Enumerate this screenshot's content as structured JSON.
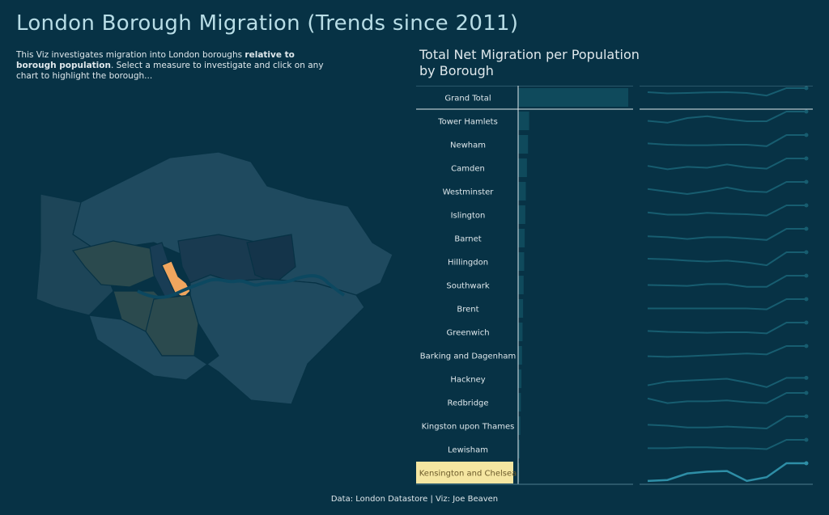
{
  "header": {
    "title": "London Borough Migration (Trends since 2011)",
    "intro_part1": "This Viz investigates migration into London boroughs ",
    "intro_bold": "relative to borough population",
    "intro_part2": ". Select a measure to investigate and click on any chart to highlight the borough..."
  },
  "footer": {
    "text": "Data: London Datastore | Viz: Joe Beaven"
  },
  "colors": {
    "background": "#073245",
    "bar": "#0f4a5c",
    "line": "#175d70",
    "highlight_line": "#2e8ea6",
    "highlight_label_bg": "#f5e6a1",
    "map_highlight": "#f0a55e"
  },
  "map": {
    "highlighted_borough": "Kensington and Chelsea",
    "icon": "london-borough-map"
  },
  "chart_data": {
    "type": "table",
    "title": "Total Net Migration per Population by Borough",
    "highlighted": "Kensington and Chelsea",
    "rows": [
      {
        "label": "Grand Total",
        "bar": 100,
        "trend": [
          0.78,
          0.72,
          0.74,
          0.77,
          0.78,
          0.74,
          0.6,
          1.0,
          1.0
        ]
      },
      {
        "label": "Tower Hamlets",
        "bar": 10,
        "trend": [
          0.5,
          0.4,
          0.65,
          0.75,
          0.6,
          0.48,
          0.48,
          1.0,
          1.0
        ]
      },
      {
        "label": "Newham",
        "bar": 9,
        "trend": [
          0.55,
          0.48,
          0.45,
          0.45,
          0.48,
          0.48,
          0.4,
          1.0,
          1.0
        ]
      },
      {
        "label": "Camden",
        "bar": 8,
        "trend": [
          0.6,
          0.42,
          0.55,
          0.5,
          0.68,
          0.52,
          0.45,
          1.0,
          1.0
        ]
      },
      {
        "label": "Westminster",
        "bar": 7,
        "trend": [
          0.62,
          0.48,
          0.35,
          0.5,
          0.7,
          0.5,
          0.45,
          1.0,
          1.0
        ]
      },
      {
        "label": "Islington",
        "bar": 6.5,
        "trend": [
          0.62,
          0.5,
          0.5,
          0.6,
          0.55,
          0.52,
          0.45,
          1.0,
          1.0
        ]
      },
      {
        "label": "Barnet",
        "bar": 6,
        "trend": [
          0.6,
          0.55,
          0.45,
          0.55,
          0.55,
          0.48,
          0.4,
          1.0,
          1.0
        ]
      },
      {
        "label": "Hillingdon",
        "bar": 5.5,
        "trend": [
          0.65,
          0.62,
          0.55,
          0.5,
          0.55,
          0.45,
          0.3,
          1.0,
          1.0
        ]
      },
      {
        "label": "Southwark",
        "bar": 5,
        "trend": [
          0.5,
          0.48,
          0.45,
          0.55,
          0.55,
          0.4,
          0.4,
          1.0,
          1.0
        ]
      },
      {
        "label": "Brent",
        "bar": 4.5,
        "trend": [
          0.5,
          0.5,
          0.5,
          0.5,
          0.5,
          0.5,
          0.45,
          1.0,
          1.0
        ]
      },
      {
        "label": "Greenwich",
        "bar": 4,
        "trend": [
          0.55,
          0.5,
          0.48,
          0.45,
          0.48,
          0.48,
          0.42,
          1.0,
          1.0
        ]
      },
      {
        "label": "Barking and Dagenham",
        "bar": 3.5,
        "trend": [
          0.45,
          0.42,
          0.45,
          0.5,
          0.55,
          0.6,
          0.55,
          1.0,
          1.0
        ]
      },
      {
        "label": "Hackney",
        "bar": 3,
        "trend": [
          0.15,
          0.35,
          0.4,
          0.45,
          0.5,
          0.3,
          0.05,
          0.55,
          0.55
        ]
      },
      {
        "label": "Redbridge",
        "bar": 2.5,
        "trend": [
          0.7,
          0.45,
          0.55,
          0.55,
          0.6,
          0.5,
          0.45,
          1.0,
          1.0
        ]
      },
      {
        "label": "Kingston upon Thames",
        "bar": 2,
        "trend": [
          0.55,
          0.5,
          0.4,
          0.4,
          0.45,
          0.4,
          0.35,
          1.0,
          1.0
        ]
      },
      {
        "label": "Lewisham",
        "bar": 1.5,
        "trend": [
          0.55,
          0.55,
          0.6,
          0.6,
          0.55,
          0.55,
          0.5,
          1.0,
          1.0
        ]
      },
      {
        "label": "Kensington and Chelsea",
        "bar": 1,
        "trend": [
          0.05,
          0.1,
          0.45,
          0.55,
          0.58,
          0.05,
          0.25,
          1.0,
          1.0
        ]
      }
    ]
  }
}
